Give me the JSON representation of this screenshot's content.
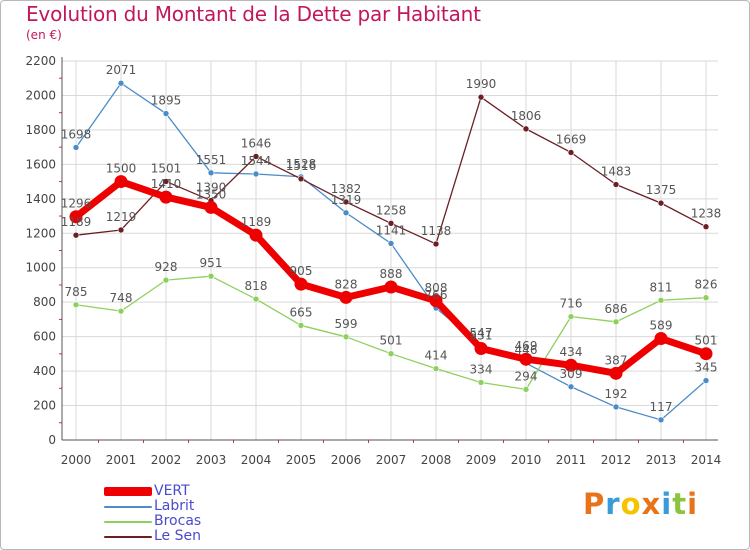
{
  "title": "Evolution du Montant de la Dette par Habitant",
  "subtitle": "(en €)",
  "colors": {
    "title": "#c2185b",
    "axis": "#555555",
    "grid": "#d9d9d9",
    "tick_marks": "#cc3333",
    "legend_text": "#4a4acf"
  },
  "chart_data": {
    "type": "line",
    "title": "Evolution du Montant de la Dette par Habitant",
    "subtitle": "(en €)",
    "xlabel": "",
    "ylabel": "",
    "x": [
      "2000",
      "2001",
      "2002",
      "2003",
      "2004",
      "2005",
      "2006",
      "2007",
      "2008",
      "2009",
      "2010",
      "2011",
      "2012",
      "2013",
      "2014"
    ],
    "ylim": [
      0,
      2200
    ],
    "yticks": [
      0,
      200,
      400,
      600,
      800,
      1000,
      1200,
      1400,
      1600,
      1800,
      2000,
      2200
    ],
    "grid": true,
    "legend_position": "bottom-left",
    "series": [
      {
        "name": "VERT",
        "color": "#ee0000",
        "values": [
          1296,
          1500,
          1410,
          1350,
          1189,
          905,
          828,
          888,
          808,
          531,
          469,
          434,
          387,
          589,
          501
        ],
        "labels": [
          "1296",
          "1500",
          "1410",
          "1350",
          "1189",
          "905",
          "828",
          "888",
          "808",
          "531",
          "469",
          "434",
          "387",
          "589",
          "501"
        ]
      },
      {
        "name": "Labrit",
        "color": "#4a8cc7",
        "values": [
          1698,
          2071,
          1895,
          1551,
          1544,
          1528,
          1319,
          1141,
          766,
          547,
          446,
          309,
          192,
          117,
          345
        ],
        "labels": [
          "1698",
          "2071",
          "1895",
          "1551",
          "1544",
          "1528",
          "1319",
          "1141",
          "766",
          "547",
          "446",
          "309",
          "192",
          "117",
          "345"
        ]
      },
      {
        "name": "Brocas",
        "color": "#8ed05e",
        "values": [
          785,
          748,
          928,
          951,
          818,
          665,
          599,
          501,
          414,
          334,
          294,
          716,
          686,
          811,
          826
        ],
        "labels": [
          "785",
          "748",
          "928",
          "951",
          "818",
          "665",
          "599",
          "501",
          "414",
          "334",
          "294",
          "716",
          "686",
          "811",
          "826"
        ]
      },
      {
        "name": "Le Sen",
        "color": "#6b1f24",
        "values": [
          1189,
          1219,
          1501,
          1390,
          1646,
          1516,
          1382,
          1258,
          1138,
          1990,
          1806,
          1669,
          1483,
          1375,
          1238
        ],
        "labels": [
          "1189",
          "1219",
          "1501",
          "1390",
          "1646",
          "1516",
          "1382",
          "1258",
          "1138",
          "1990",
          "1806",
          "1669",
          "1483",
          "1375",
          "1238"
        ]
      }
    ]
  },
  "legend": {
    "items": [
      {
        "label": "VERT",
        "color": "#ee0000"
      },
      {
        "label": "Labrit",
        "color": "#4a8cc7"
      },
      {
        "label": "Brocas",
        "color": "#8ed05e"
      },
      {
        "label": "Le Sen",
        "color": "#6b1f24"
      }
    ]
  },
  "logo": {
    "text": "Proxiti",
    "letters": [
      "P",
      "r",
      "o",
      "x",
      "i",
      "t",
      "i"
    ],
    "letter_colors": [
      "#e8731a",
      "#3a9bd8",
      "#f5c400",
      "#e8731a",
      "#3a9bd8",
      "#8bc540",
      "#e8731a"
    ]
  }
}
